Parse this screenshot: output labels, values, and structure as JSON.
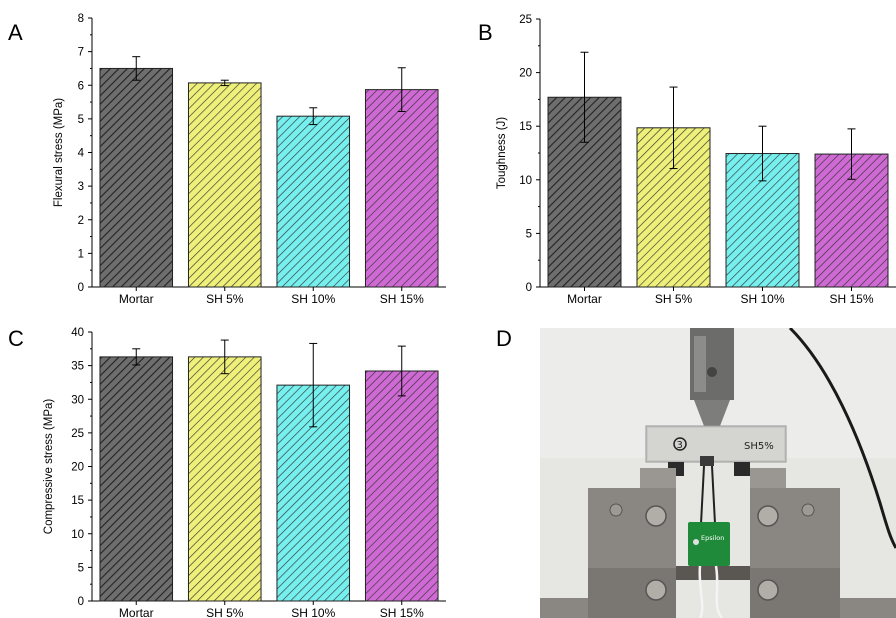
{
  "colors": {
    "mortar": "#6e6e6e",
    "sh5": "#eef07a",
    "sh10": "#76f0ee",
    "sh15": "#cf6ad4"
  },
  "chart_data": [
    {
      "panel": "A",
      "type": "bar",
      "categories": [
        "Mortar",
        "SH 5%",
        "SH 10%",
        "SH 15%"
      ],
      "values": [
        6.5,
        6.07,
        5.08,
        5.87
      ],
      "errors": [
        0.35,
        0.08,
        0.25,
        0.65
      ],
      "ylabel": "Flexural stress (MPa)",
      "ylim": [
        0,
        8
      ],
      "yticks": [
        "0",
        "1",
        "2",
        "3",
        "4",
        "5",
        "6",
        "7",
        "8"
      ],
      "pattern": "hatched",
      "grid": false
    },
    {
      "panel": "B",
      "type": "bar",
      "categories": [
        "Mortar",
        "SH 5%",
        "SH 10%",
        "SH 15%"
      ],
      "values": [
        17.7,
        14.85,
        12.45,
        12.4
      ],
      "errors": [
        4.2,
        3.8,
        2.55,
        2.35
      ],
      "ylabel": "Toughness (J)",
      "ylim": [
        0,
        25
      ],
      "yticks": [
        "0",
        "5",
        "10",
        "15",
        "20",
        "25"
      ],
      "pattern": "hatched",
      "grid": false
    },
    {
      "panel": "C",
      "type": "bar",
      "categories": [
        "Mortar",
        "SH 5%",
        "SH 10%",
        "SH 15%"
      ],
      "values": [
        36.3,
        36.3,
        32.1,
        34.2
      ],
      "errors": [
        1.2,
        2.5,
        6.2,
        3.7
      ],
      "ylabel": "Compressive stress (MPa)",
      "ylim": [
        0,
        40
      ],
      "yticks": [
        "0",
        "5",
        "10",
        "15",
        "20",
        "25",
        "30",
        "35",
        "40"
      ],
      "pattern": "hatched",
      "grid": false
    }
  ],
  "photo": {
    "panel": "D",
    "sample_marks": [
      "3",
      "SH5%"
    ],
    "device_label": "Epsilon"
  }
}
